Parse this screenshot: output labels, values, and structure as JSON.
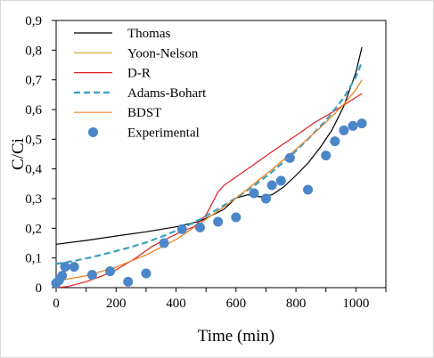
{
  "chart_data": {
    "type": "scatter",
    "xlabel": "Time (min)",
    "ylabel": "C/Ci",
    "xlim": [
      0,
      1100
    ],
    "ylim": [
      0,
      0.9
    ],
    "x_ticks": [
      "0",
      "200",
      "400",
      "600",
      "800",
      "1000"
    ],
    "y_ticks": [
      "0",
      "0,1",
      "0,2",
      "0,3",
      "0,4",
      "0,5",
      "0,6",
      "0,7",
      "0,8",
      "0,9"
    ],
    "grid": false,
    "legend_position": "top-left",
    "series": [
      {
        "name": "Thomas",
        "kind": "line",
        "color": "#000000",
        "dash": "solid",
        "x": [
          0,
          100,
          200,
          300,
          400,
          480,
          560,
          600,
          640,
          680,
          720,
          760,
          800,
          840,
          880,
          920,
          960,
          1000,
          1020
        ],
        "y": [
          0.146,
          0.159,
          0.174,
          0.188,
          0.205,
          0.224,
          0.264,
          0.302,
          0.313,
          0.306,
          0.313,
          0.34,
          0.378,
          0.419,
          0.471,
          0.531,
          0.612,
          0.725,
          0.81
        ]
      },
      {
        "name": "Yoon-Nelson",
        "kind": "line",
        "color": "#c9a228",
        "dash": "solid",
        "x": [
          0,
          100,
          200,
          300,
          400,
          480,
          560,
          600,
          640,
          680,
          720,
          760,
          800,
          840,
          880,
          920,
          960,
          1000,
          1020
        ],
        "y": [
          0.022,
          0.04,
          0.069,
          0.11,
          0.162,
          0.217,
          0.272,
          0.302,
          0.333,
          0.366,
          0.398,
          0.432,
          0.466,
          0.502,
          0.538,
          0.577,
          0.618,
          0.667,
          0.7
        ]
      },
      {
        "name": "D-R",
        "kind": "line",
        "color": "#e02020",
        "dash": "solid",
        "x": [
          0,
          40,
          100,
          160,
          200,
          260,
          320,
          380,
          420,
          460,
          500,
          520,
          540,
          560,
          600,
          650,
          700,
          760,
          800,
          860,
          920,
          980,
          1020
        ],
        "y": [
          0.0,
          0.004,
          0.02,
          0.042,
          0.06,
          0.096,
          0.139,
          0.17,
          0.19,
          0.205,
          0.245,
          0.283,
          0.322,
          0.345,
          0.373,
          0.408,
          0.444,
          0.485,
          0.512,
          0.555,
          0.59,
          0.628,
          0.654
        ]
      },
      {
        "name": "Adams-Bohart",
        "kind": "line",
        "color": "#3a9fbf",
        "dash": "dashed",
        "x": [
          0,
          60,
          120,
          180,
          240,
          300,
          360,
          420,
          480,
          540,
          600,
          660,
          720,
          780,
          840,
          900,
          960,
          1000,
          1020
        ],
        "y": [
          0.08,
          0.09,
          0.103,
          0.118,
          0.134,
          0.152,
          0.175,
          0.2,
          0.23,
          0.265,
          0.302,
          0.343,
          0.39,
          0.441,
          0.5,
          0.563,
          0.64,
          0.71,
          0.76
        ]
      },
      {
        "name": "BDST",
        "kind": "line",
        "color": "#f0862a",
        "dash": "solid",
        "x": [
          0,
          100,
          200,
          300,
          400,
          480,
          560,
          600,
          640,
          680,
          720,
          760,
          800,
          840,
          880,
          920,
          960,
          1000,
          1020
        ],
        "y": [
          0.022,
          0.04,
          0.069,
          0.11,
          0.162,
          0.217,
          0.272,
          0.302,
          0.333,
          0.366,
          0.398,
          0.432,
          0.466,
          0.502,
          0.538,
          0.577,
          0.618,
          0.667,
          0.7
        ]
      },
      {
        "name": "Experimental",
        "kind": "scatter",
        "color": "#4a86c8",
        "x": [
          0,
          10,
          20,
          30,
          60,
          120,
          180,
          240,
          300,
          360,
          420,
          480,
          540,
          600,
          660,
          700,
          720,
          750,
          780,
          840,
          900,
          930,
          960,
          990,
          1020
        ],
        "y": [
          0.015,
          0.025,
          0.04,
          0.07,
          0.07,
          0.043,
          0.055,
          0.02,
          0.048,
          0.15,
          0.197,
          0.203,
          0.222,
          0.237,
          0.318,
          0.3,
          0.345,
          0.36,
          0.437,
          0.33,
          0.445,
          0.493,
          0.53,
          0.545,
          0.553
        ]
      }
    ]
  }
}
